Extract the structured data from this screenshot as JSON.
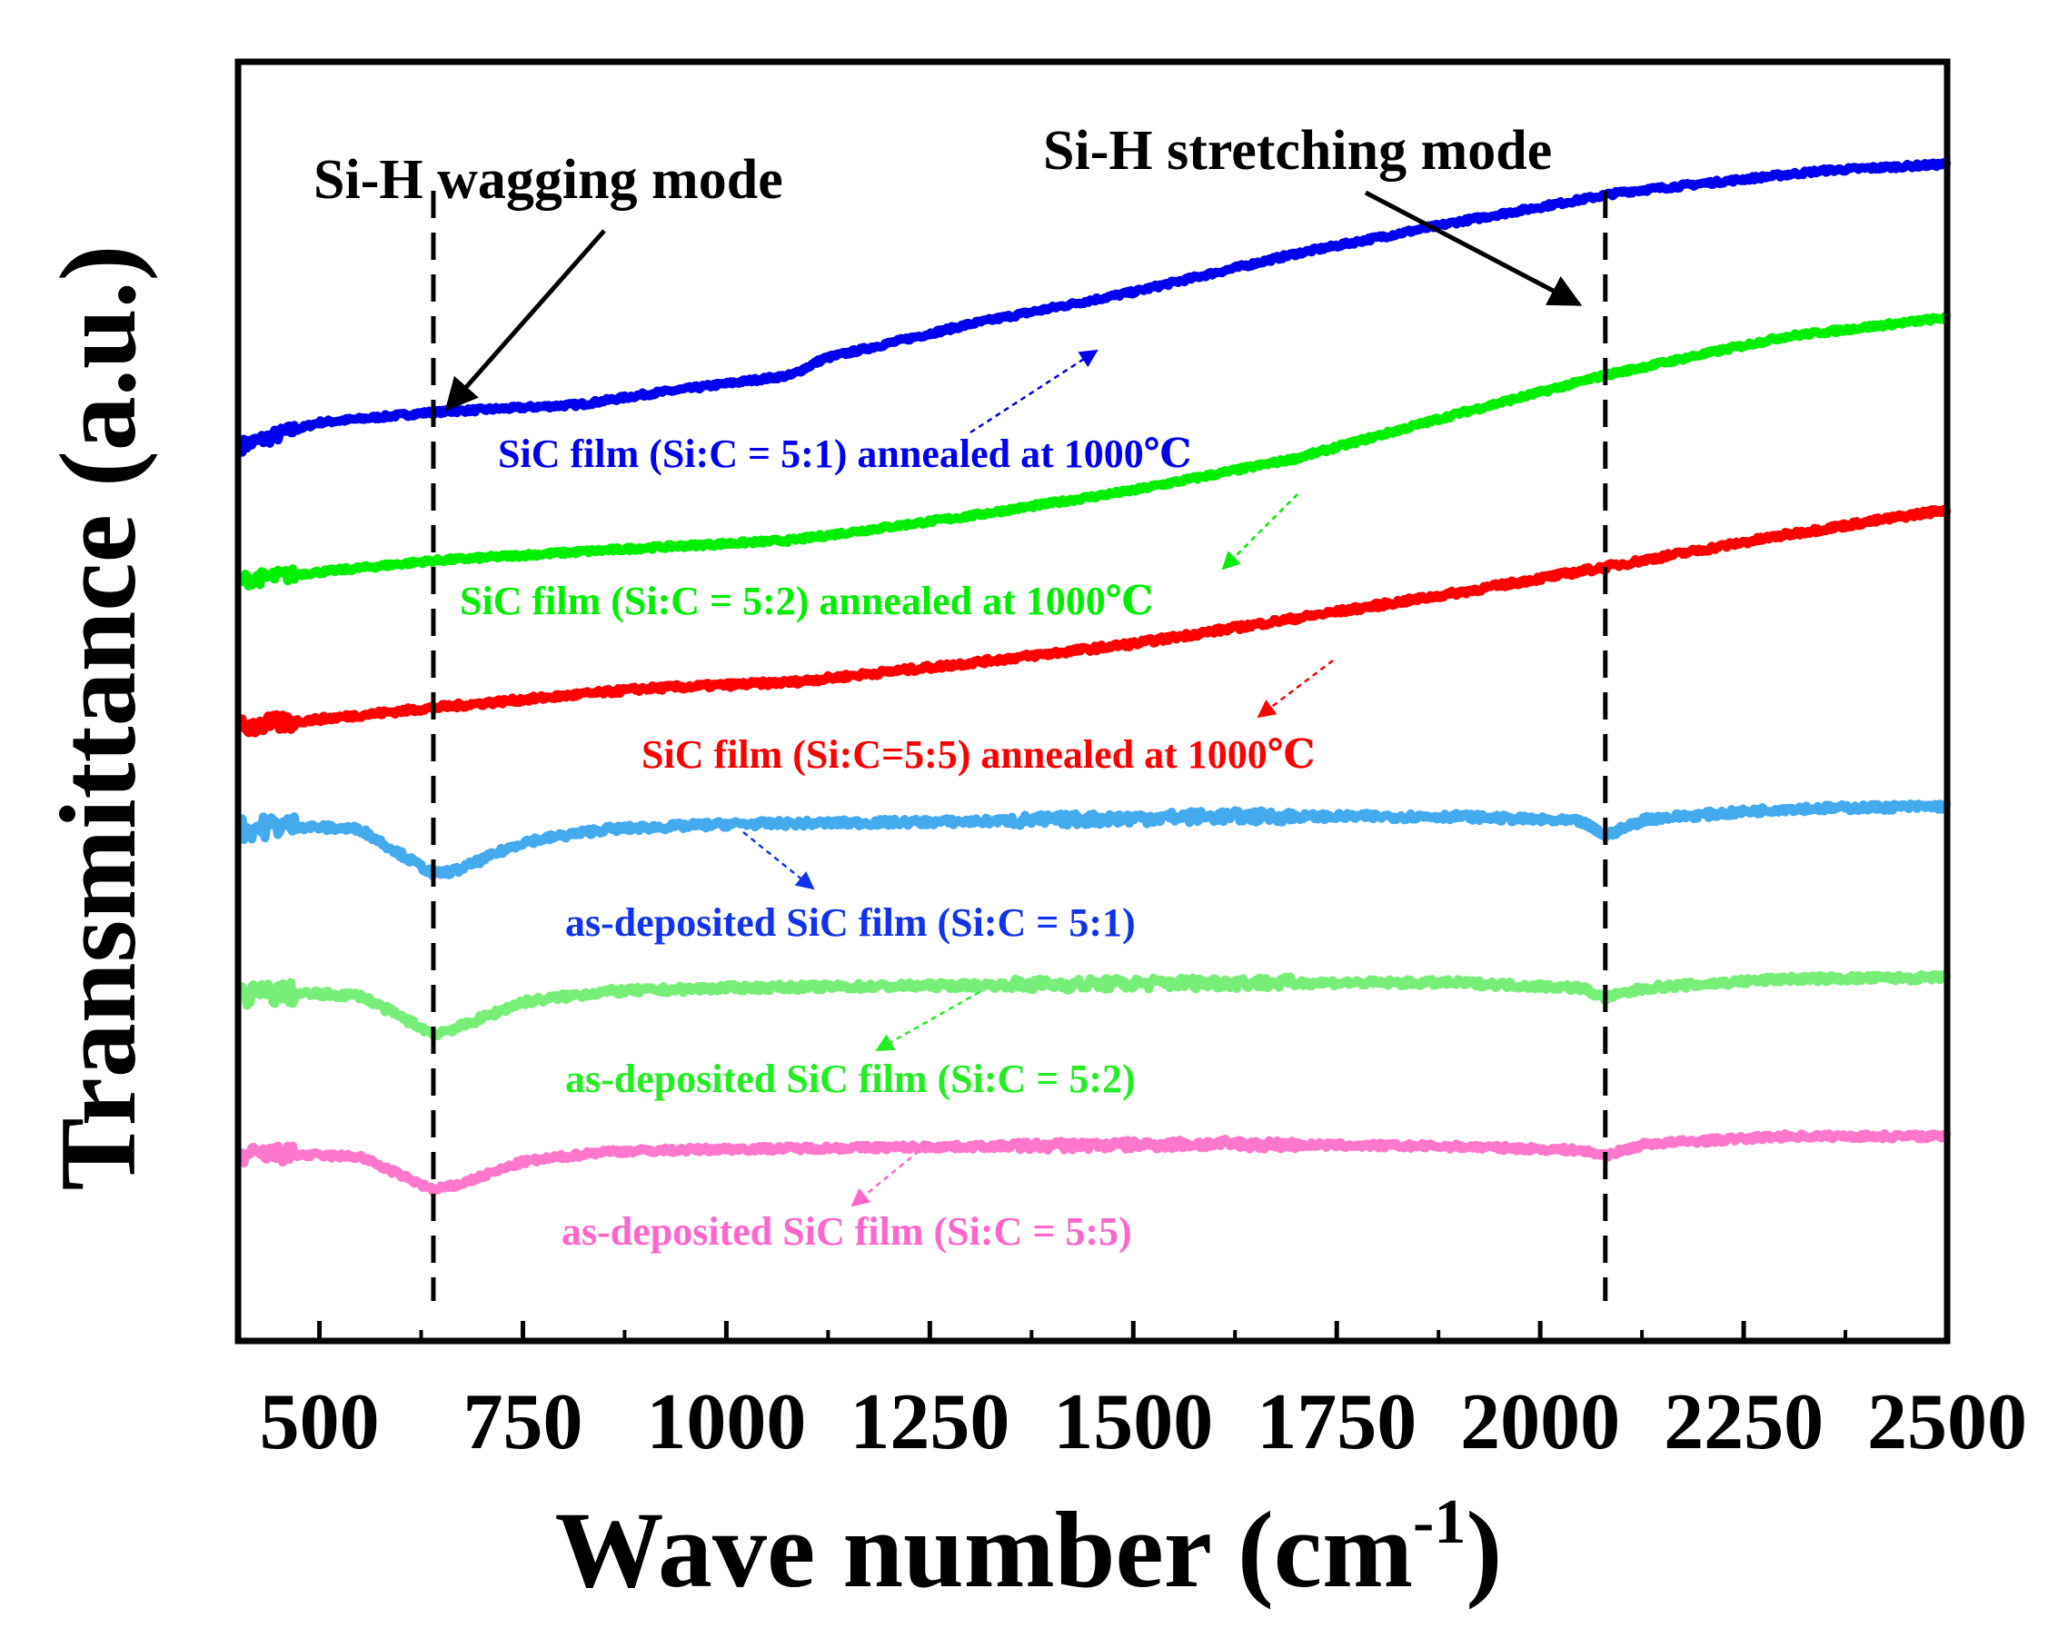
{
  "chart_data": {
    "type": "line",
    "title": "",
    "xlabel_main": "Wave  number (cm",
    "xlabel_sup": "-1",
    "xlabel_close": ")",
    "ylabel": "Transmittance (a.u.)",
    "xlim": [
      400,
      2500
    ],
    "ylim": [
      0,
      100
    ],
    "xticks": [
      500,
      750,
      1000,
      1250,
      1500,
      1750,
      2000,
      2250,
      2500
    ],
    "xtick_labels": [
      "500",
      "750",
      "1000",
      "1250",
      "1500",
      "1750",
      "2000",
      "2250",
      "2500"
    ],
    "yticks_shown": false,
    "grid": false,
    "reference_lines": [
      {
        "x": 640,
        "style": "dashed"
      },
      {
        "x": 2080,
        "style": "dashed"
      }
    ],
    "annotations": [
      {
        "text": "Si-H wagging mode",
        "points_to_x": 640
      },
      {
        "text": "Si-H stretching mode",
        "points_to_x": 2080
      }
    ],
    "series": [
      {
        "name": "SiC film (Si:C = 5:1) annealed at 1000℃",
        "color": "#0000ee",
        "noise": 0.3,
        "x": [
          405,
          500,
          640,
          820,
          900,
          1080,
          1120,
          1300,
          1500,
          1700,
          1900,
          2100,
          2350,
          2500
        ],
        "y": [
          70.0,
          71.8,
          72.6,
          73.2,
          74.0,
          75.5,
          76.8,
          79.5,
          82.0,
          85.0,
          87.5,
          89.8,
          91.5,
          92.0
        ]
      },
      {
        "name": "SiC film (Si:C = 5:2) annealed at 1000℃",
        "color": "#00ee00",
        "noise": 0.3,
        "x": [
          405,
          640,
          900,
          1080,
          1300,
          1500,
          1700,
          1900,
          2080,
          2300,
          2500
        ],
        "y": [
          59.5,
          61.0,
          62.0,
          62.6,
          64.5,
          66.5,
          69.0,
          72.5,
          75.5,
          78.5,
          80.0
        ]
      },
      {
        "name": "SiC film (Si:C=5:5) annealed at 1000℃",
        "color": "#ff0000",
        "noise": 0.4,
        "x": [
          405,
          640,
          900,
          1080,
          1300,
          1500,
          1700,
          1900,
          2080,
          2300,
          2500
        ],
        "y": [
          48.0,
          49.5,
          51.0,
          51.5,
          53.0,
          54.5,
          56.5,
          58.5,
          60.5,
          63.0,
          65.0
        ]
      },
      {
        "name": "as-deposited SiC film (Si:C = 5:1)",
        "color": "#44aaee",
        "noise": 0.5,
        "x": [
          405,
          450,
          550,
          640,
          670,
          750,
          850,
          1000,
          1300,
          1600,
          1900,
          2050,
          2080,
          2130,
          2300,
          2500
        ],
        "y": [
          40.0,
          40.3,
          40.0,
          36.5,
          36.8,
          39.0,
          40.0,
          40.4,
          40.6,
          41.0,
          41.0,
          40.6,
          39.5,
          40.8,
          41.6,
          41.8
        ]
      },
      {
        "name": "as-deposited SiC film (Si:C = 5:2)",
        "color": "#77ee77",
        "noise": 0.5,
        "x": [
          405,
          450,
          550,
          640,
          670,
          750,
          850,
          1000,
          1300,
          1600,
          1900,
          2050,
          2080,
          2130,
          2300,
          2500
        ],
        "y": [
          27.0,
          27.2,
          27.0,
          24.0,
          24.5,
          26.5,
          27.3,
          27.6,
          27.8,
          28.0,
          28.0,
          27.6,
          26.8,
          27.6,
          28.3,
          28.4
        ]
      },
      {
        "name": "as-deposited SiC film (Si:C = 5:5)",
        "color": "#ff77cc",
        "noise": 0.4,
        "x": [
          405,
          450,
          550,
          640,
          670,
          750,
          850,
          1000,
          1300,
          1600,
          1900,
          2050,
          2080,
          2130,
          2300,
          2500
        ],
        "y": [
          14.5,
          14.6,
          14.4,
          11.8,
          12.2,
          14.0,
          14.8,
          15.0,
          15.2,
          15.4,
          15.2,
          14.9,
          14.5,
          15.4,
          16.0,
          16.0
        ]
      }
    ],
    "series_labels": [
      {
        "text": "SiC film (Si:C = 5:1) annealed at 1000℃",
        "color": "#0000ee"
      },
      {
        "text": "SiC film (Si:C = 5:2) annealed at 1000℃",
        "color": "#00ee00"
      },
      {
        "text": "SiC film (Si:C=5:5) annealed at 1000℃",
        "color": "#ff0000"
      },
      {
        "text": "as-deposited SiC film (Si:C = 5:1)",
        "color": "#1133ee"
      },
      {
        "text": "as-deposited SiC film (Si:C = 5:2)",
        "color": "#22ee22"
      },
      {
        "text": "as-deposited SiC film (Si:C = 5:5)",
        "color": "#ff66cc"
      }
    ]
  }
}
